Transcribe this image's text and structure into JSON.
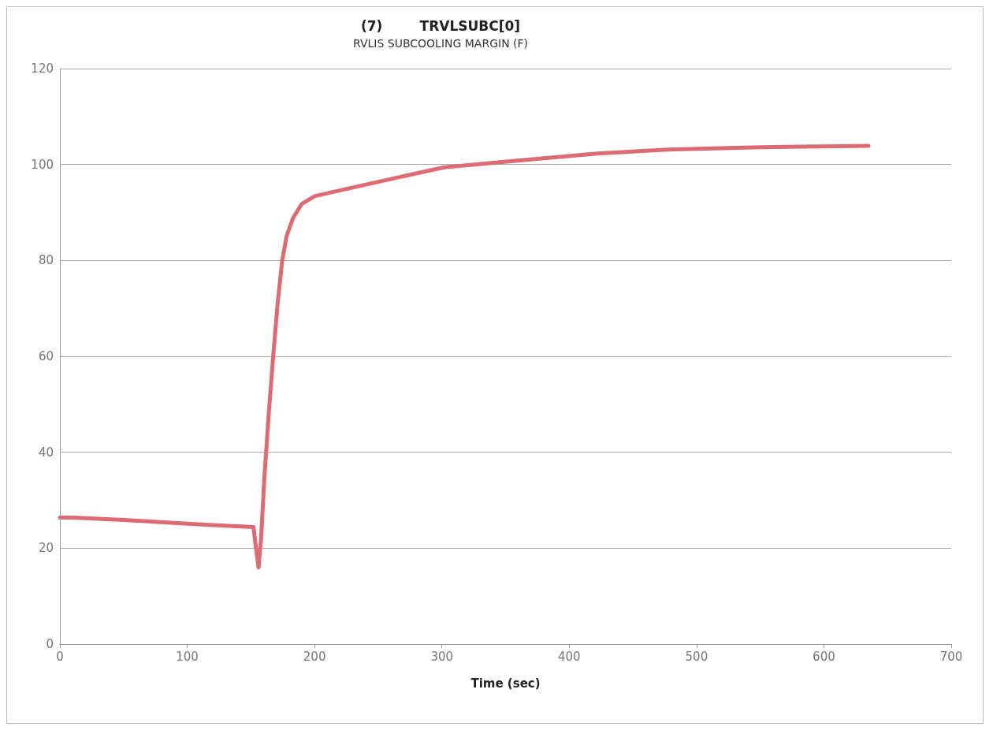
{
  "chart_data": {
    "type": "line",
    "title": "(7)        TRVLSUBC[0]",
    "subtitle": "RVLIS SUBCOOLING MARGIN (F)",
    "xlabel": "Time (sec)",
    "xlim": [
      0,
      700
    ],
    "xticks": [
      0,
      100,
      200,
      300,
      400,
      500,
      600,
      700
    ],
    "ylim": [
      0,
      120
    ],
    "yticks": [
      0,
      20,
      40,
      60,
      80,
      100,
      120
    ],
    "grid": "y",
    "marker": "none",
    "line_style": "solid",
    "series": [
      {
        "color": "#dc6b73",
        "x": [
          0,
          10,
          50,
          100,
          152,
          154,
          156,
          158,
          160.5,
          164,
          167.5,
          171,
          174.6,
          178,
          183,
          190,
          200,
          210,
          250,
          301.7,
          354,
          421.8,
          477,
          550,
          635
        ],
        "values": [
          26.4,
          26.4,
          25.9,
          25.1,
          24.4,
          20,
          16,
          22,
          34.3,
          48,
          60,
          71,
          80,
          85,
          88.8,
          91.8,
          93.4,
          94,
          96.4,
          99.4,
          100.7,
          102.3,
          103.1,
          103.6,
          103.9
        ]
      }
    ]
  }
}
